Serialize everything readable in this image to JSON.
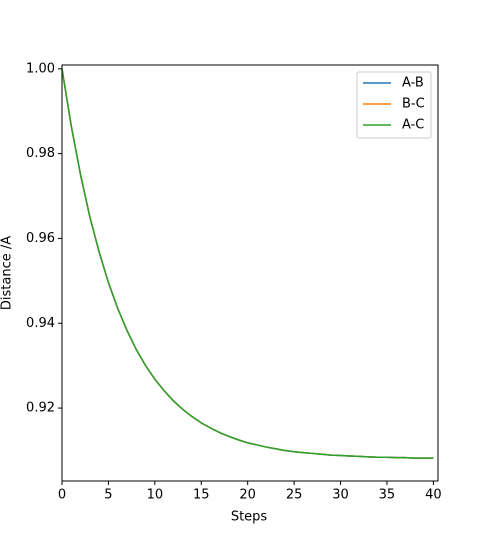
{
  "chart_data": {
    "type": "line",
    "xlabel": "Steps",
    "ylabel": "Distance /A",
    "x": [
      0,
      1,
      2,
      3,
      4,
      5,
      6,
      7,
      8,
      9,
      10,
      11,
      12,
      13,
      14,
      15,
      16,
      17,
      18,
      19,
      20,
      21,
      22,
      23,
      24,
      25,
      26,
      27,
      28,
      29,
      30,
      31,
      32,
      33,
      34,
      35,
      36,
      37,
      38,
      39,
      40
    ],
    "series": [
      {
        "name": "A-B",
        "color": "#1f77b4",
        "values": [
          1.0,
          0.9865,
          0.975,
          0.9651,
          0.9568,
          0.9496,
          0.9435,
          0.9383,
          0.9338,
          0.93,
          0.9268,
          0.9241,
          0.9217,
          0.9197,
          0.918,
          0.9165,
          0.9153,
          0.9142,
          0.9133,
          0.9125,
          0.9118,
          0.9113,
          0.9108,
          0.9104,
          0.91,
          0.9097,
          0.9095,
          0.9093,
          0.9091,
          0.9089,
          0.9088,
          0.9087,
          0.9086,
          0.9085,
          0.9084,
          0.9084,
          0.9083,
          0.9083,
          0.9082,
          0.9082,
          0.9082
        ]
      },
      {
        "name": "B-C",
        "color": "#ff7f0e",
        "values": [
          1.0,
          0.9865,
          0.975,
          0.9651,
          0.9568,
          0.9496,
          0.9435,
          0.9383,
          0.9338,
          0.93,
          0.9268,
          0.9241,
          0.9217,
          0.9197,
          0.918,
          0.9165,
          0.9153,
          0.9142,
          0.9133,
          0.9125,
          0.9118,
          0.9113,
          0.9108,
          0.9104,
          0.91,
          0.9097,
          0.9095,
          0.9093,
          0.9091,
          0.9089,
          0.9088,
          0.9087,
          0.9086,
          0.9085,
          0.9084,
          0.9084,
          0.9083,
          0.9083,
          0.9082,
          0.9082,
          0.9082
        ]
      },
      {
        "name": "A-C",
        "color": "#2ca02c",
        "values": [
          1.0,
          0.9865,
          0.975,
          0.9651,
          0.9568,
          0.9496,
          0.9435,
          0.9383,
          0.9338,
          0.93,
          0.9268,
          0.9241,
          0.9217,
          0.9197,
          0.918,
          0.9165,
          0.9153,
          0.9142,
          0.9133,
          0.9125,
          0.9118,
          0.9113,
          0.9108,
          0.9104,
          0.91,
          0.9097,
          0.9095,
          0.9093,
          0.9091,
          0.9089,
          0.9088,
          0.9087,
          0.9086,
          0.9085,
          0.9084,
          0.9084,
          0.9083,
          0.9083,
          0.9082,
          0.9082,
          0.9082
        ]
      }
    ],
    "xlim": [
      0,
      40.5
    ],
    "xticks": [
      0,
      5,
      10,
      15,
      20,
      25,
      30,
      35,
      40
    ],
    "ylim": [
      0.9028,
      1.0009
    ],
    "yticks": [
      {
        "value": 0.92,
        "label": "0.92"
      },
      {
        "value": 0.94,
        "label": "0.94"
      },
      {
        "value": 0.96,
        "label": "0.96"
      },
      {
        "value": 0.98,
        "label": "0.98"
      },
      {
        "value": 1.0,
        "label": "1.00"
      }
    ],
    "legend": "upper right",
    "grid": false
  }
}
